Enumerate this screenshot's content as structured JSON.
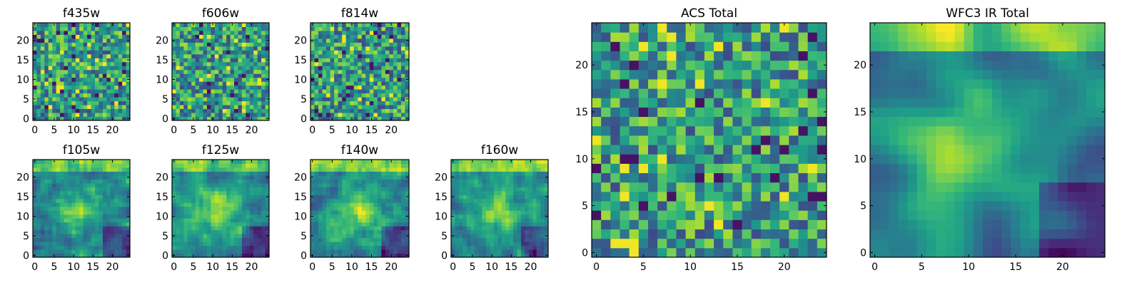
{
  "chart_data": [
    {
      "id": "f435w",
      "type": "heatmap",
      "title": "f435w",
      "grid_size": 25,
      "pattern": "noise",
      "seed": 11,
      "colormap": "viridis",
      "xlim": [
        0,
        24
      ],
      "ylim": [
        0,
        24
      ],
      "xticks": [
        0,
        5,
        10,
        15,
        20
      ],
      "yticks": [
        0,
        5,
        10,
        15,
        20
      ]
    },
    {
      "id": "f606w",
      "type": "heatmap",
      "title": "f606w",
      "grid_size": 25,
      "pattern": "noise",
      "seed": 23,
      "colormap": "viridis",
      "xlim": [
        0,
        24
      ],
      "ylim": [
        0,
        24
      ],
      "xticks": [
        0,
        5,
        10,
        15,
        20
      ],
      "yticks": [
        0,
        5,
        10,
        15,
        20
      ]
    },
    {
      "id": "f814w",
      "type": "heatmap",
      "title": "f814w",
      "grid_size": 25,
      "pattern": "noise",
      "seed": 37,
      "colormap": "viridis",
      "xlim": [
        0,
        24
      ],
      "ylim": [
        0,
        24
      ],
      "xticks": [
        0,
        5,
        10,
        15,
        20
      ],
      "yticks": [
        0,
        5,
        10,
        15,
        20
      ]
    },
    {
      "id": "f105w",
      "type": "heatmap",
      "title": "f105w",
      "grid_size": 25,
      "pattern": "blob",
      "seed": 41,
      "colormap": "viridis",
      "xlim": [
        0,
        24
      ],
      "ylim": [
        0,
        24
      ],
      "xticks": [
        0,
        5,
        10,
        15,
        20
      ],
      "yticks": [
        0,
        5,
        10,
        15,
        20
      ]
    },
    {
      "id": "f125w",
      "type": "heatmap",
      "title": "f125w",
      "grid_size": 25,
      "pattern": "blob",
      "seed": 53,
      "colormap": "viridis",
      "xlim": [
        0,
        24
      ],
      "ylim": [
        0,
        24
      ],
      "xticks": [
        0,
        5,
        10,
        15,
        20
      ],
      "yticks": [
        0,
        5,
        10,
        15,
        20
      ]
    },
    {
      "id": "f140w",
      "type": "heatmap",
      "title": "f140w",
      "grid_size": 25,
      "pattern": "blob",
      "seed": 67,
      "colormap": "viridis",
      "xlim": [
        0,
        24
      ],
      "ylim": [
        0,
        24
      ],
      "xticks": [
        0,
        5,
        10,
        15,
        20
      ],
      "yticks": [
        0,
        5,
        10,
        15,
        20
      ]
    },
    {
      "id": "f160w",
      "type": "heatmap",
      "title": "f160w",
      "grid_size": 25,
      "pattern": "blob",
      "seed": 79,
      "colormap": "viridis",
      "xlim": [
        0,
        24
      ],
      "ylim": [
        0,
        24
      ],
      "xticks": [
        0,
        5,
        10,
        15,
        20
      ],
      "yticks": [
        0,
        5,
        10,
        15,
        20
      ]
    },
    {
      "id": "acs-total",
      "type": "heatmap",
      "title": "ACS Total",
      "grid_size": 25,
      "pattern": "noise",
      "seed": 97,
      "colormap": "viridis",
      "xlim": [
        0,
        24
      ],
      "ylim": [
        0,
        24
      ],
      "xticks": [
        0,
        5,
        10,
        15,
        20
      ],
      "yticks": [
        0,
        5,
        10,
        15,
        20
      ]
    },
    {
      "id": "wfc3-ir-total",
      "type": "heatmap",
      "title": "WFC3 IR Total",
      "grid_size": 25,
      "pattern": "smooth-blob",
      "seed": 101,
      "colormap": "viridis",
      "xlim": [
        0,
        24
      ],
      "ylim": [
        0,
        24
      ],
      "xticks": [
        0,
        5,
        10,
        15,
        20
      ],
      "yticks": [
        0,
        5,
        10,
        15,
        20
      ]
    }
  ]
}
